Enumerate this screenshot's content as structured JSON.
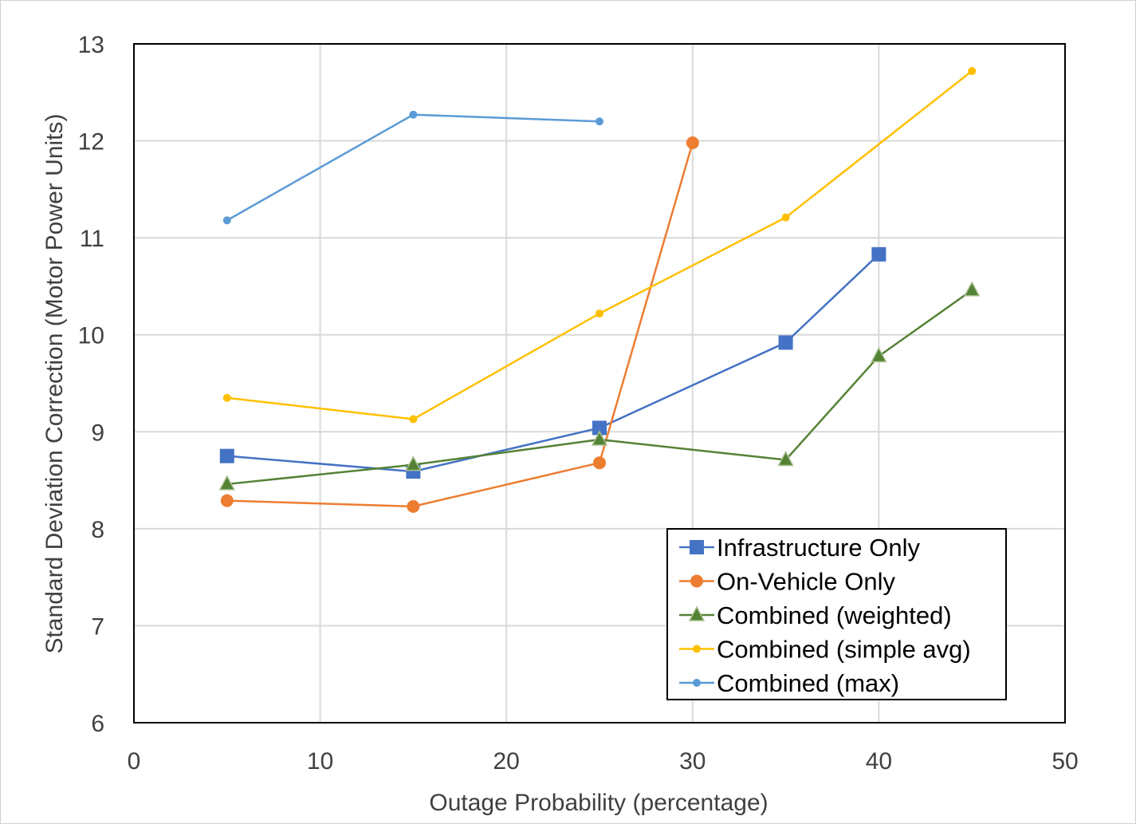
{
  "chart_data": {
    "type": "line",
    "title": "",
    "xlabel": "Outage Probability (percentage)",
    "ylabel": "Standard Deviation Correction (Motor Power Units)",
    "xlim": [
      0,
      50
    ],
    "ylim": [
      6,
      13
    ],
    "xticks": [
      0,
      10,
      20,
      30,
      40,
      50
    ],
    "yticks": [
      6,
      7,
      8,
      9,
      10,
      11,
      12,
      13
    ],
    "grid": true,
    "legend_position": "bottom-right",
    "series": [
      {
        "name": "Infrastructure Only",
        "color": "#4472C4",
        "marker": "square",
        "x": [
          5,
          15,
          25,
          35,
          40
        ],
        "y": [
          8.75,
          8.59,
          9.04,
          9.92,
          10.83
        ]
      },
      {
        "name": "On-Vehicle Only",
        "color": "#ED7D31",
        "marker": "circle",
        "x": [
          5,
          15,
          25,
          30
        ],
        "y": [
          8.29,
          8.23,
          8.68,
          11.98
        ]
      },
      {
        "name": "Combined (weighted)",
        "color": "#548235",
        "marker": "triangle",
        "x": [
          5,
          15,
          25,
          35,
          40,
          45
        ],
        "y": [
          8.46,
          8.66,
          8.92,
          8.71,
          9.78,
          10.46
        ]
      },
      {
        "name": "Combined (simple avg)",
        "color": "#FFC000",
        "marker": "dot",
        "x": [
          5,
          15,
          25,
          35,
          45
        ],
        "y": [
          9.35,
          9.13,
          10.22,
          11.21,
          12.72
        ]
      },
      {
        "name": "Combined (max)",
        "color": "#5B9BD5",
        "marker": "dot",
        "x": [
          5,
          15,
          25
        ],
        "y": [
          11.18,
          12.27,
          12.2
        ]
      }
    ]
  }
}
